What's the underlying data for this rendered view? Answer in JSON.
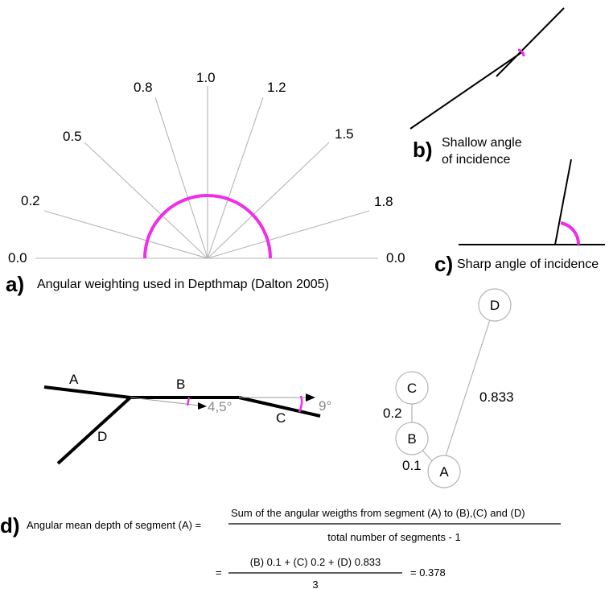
{
  "panel_a": {
    "letter": "a)",
    "caption": "Angular weighting used in Depthmap (Dalton 2005)",
    "weights": [
      "0.0",
      "0.2",
      "0.5",
      "0.8",
      "1.0",
      "1.2",
      "1.5",
      "1.8",
      "0.0"
    ]
  },
  "panel_b": {
    "letter": "b)",
    "caption_line1": "Shallow angle",
    "caption_line2": "of incidence"
  },
  "panel_c": {
    "letter": "c)",
    "caption": "Sharp angle of incidence"
  },
  "segments_diagram": {
    "segment_labels": [
      "A",
      "B",
      "C",
      "D"
    ],
    "angle_b": "4,5°",
    "angle_c": "9°"
  },
  "graph": {
    "nodes": [
      "A",
      "B",
      "C",
      "D"
    ],
    "weights": {
      "A_B": "0.1",
      "B_C": "0.2",
      "A_D": "0.833"
    }
  },
  "panel_d": {
    "letter": "d)",
    "lhs": "Angular mean depth of segment (A) =",
    "numerator": "Sum of the angular weigths from segment (A) to (B),(C) and (D)",
    "denominator": "total number of segments - 1",
    "eq2_prefix": "=",
    "eq2_numerator": "(B) 0.1 + (C) 0.2 + (D) 0.833",
    "eq2_denominator": "3",
    "result": "= 0.378"
  },
  "colors": {
    "highlight": "#ee2ee8",
    "ray": "#b5b5b5",
    "angle_text": "#8a8a8a"
  }
}
